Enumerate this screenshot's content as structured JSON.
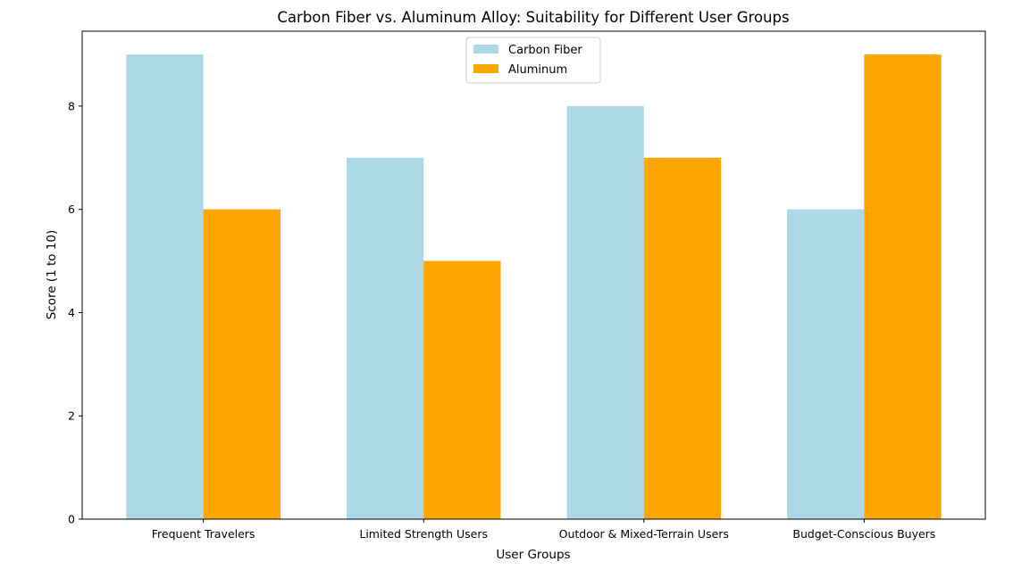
{
  "chart_data": {
    "type": "bar",
    "title": "Carbon Fiber vs. Aluminum Alloy: Suitability for Different User Groups",
    "xlabel": "User Groups",
    "ylabel": "Score (1 to 10)",
    "categories": [
      "Frequent Travelers",
      "Limited Strength Users",
      "Outdoor & Mixed-Terrain Users",
      "Budget-Conscious Buyers"
    ],
    "series": [
      {
        "name": "Carbon Fiber",
        "values": [
          9,
          7,
          8,
          6
        ],
        "color": "#add8e6"
      },
      {
        "name": "Aluminum",
        "values": [
          6,
          5,
          7,
          9
        ],
        "color": "#ffa500"
      }
    ],
    "ylim": [
      0,
      9.45
    ],
    "yticks": [
      0,
      2,
      4,
      6,
      8
    ],
    "legend_position": "top-center",
    "grid": false
  }
}
